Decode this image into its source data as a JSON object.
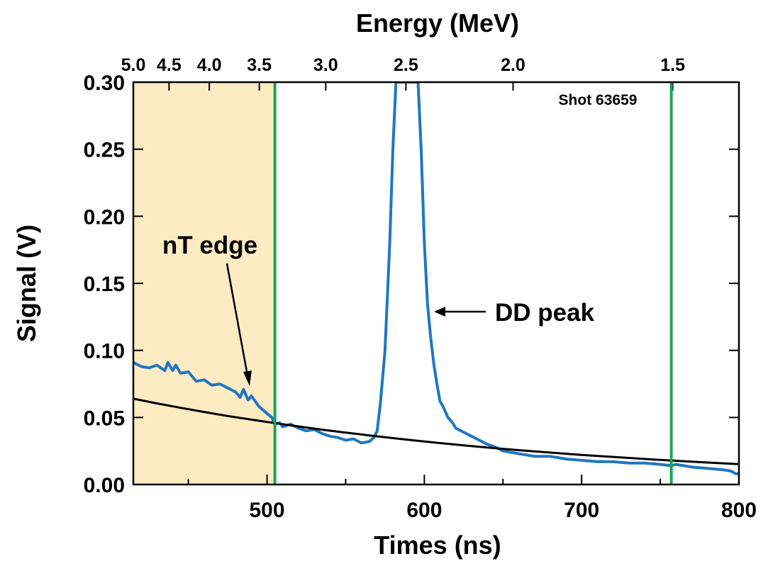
{
  "chart_data": {
    "type": "line",
    "xlabel": "Times (ns)",
    "ylabel": "Signal (V)",
    "x2label": "Energy (MeV)",
    "xlim": [
      415,
      800
    ],
    "ylim": [
      0,
      0.3
    ],
    "x_ticks": [
      "500",
      "600",
      "700",
      "800"
    ],
    "y_ticks": [
      "0.00",
      "0.05",
      "0.10",
      "0.15",
      "0.20",
      "0.25",
      "0.30"
    ],
    "energy_ticks": [
      {
        "label": "5.0",
        "x": 415
      },
      {
        "label": "4.5",
        "x": 437.7
      },
      {
        "label": "4.0",
        "x": 463.3
      },
      {
        "label": "3.5",
        "x": 495.1
      },
      {
        "label": "3.0",
        "x": 537.3
      },
      {
        "label": "2.5",
        "x": 588.3
      },
      {
        "label": "2.0",
        "x": 656.4
      },
      {
        "label": "1.5",
        "x": 757.9
      }
    ],
    "shaded_region": {
      "x_start": 415,
      "x_end": 505,
      "color": "#fdebc4"
    },
    "vlines": [
      {
        "x": 505,
        "color": "#1aa654"
      },
      {
        "x": 757,
        "color": "#1aa654"
      }
    ],
    "series": [
      {
        "color": "#1f77c0",
        "x": [
          415,
          420,
          425,
          430,
          435,
          437,
          440,
          442,
          445,
          450,
          455,
          460,
          465,
          470,
          475,
          480,
          483,
          485,
          488,
          490,
          495,
          500,
          503,
          505,
          508,
          510,
          515,
          520,
          525,
          530,
          535,
          540,
          545,
          550,
          555,
          560,
          565,
          568,
          570,
          572,
          575,
          578,
          580,
          582,
          584,
          586,
          588,
          590,
          592,
          594,
          596,
          598,
          600,
          602,
          604,
          606,
          608,
          610,
          612,
          615,
          618,
          620,
          625,
          630,
          635,
          640,
          645,
          650,
          660,
          670,
          680,
          690,
          700,
          710,
          720,
          730,
          740,
          750,
          757,
          760,
          770,
          780,
          790,
          795,
          798,
          800
        ],
        "y": [
          0.091,
          0.088,
          0.087,
          0.089,
          0.085,
          0.091,
          0.085,
          0.089,
          0.083,
          0.084,
          0.077,
          0.078,
          0.074,
          0.075,
          0.072,
          0.069,
          0.065,
          0.071,
          0.063,
          0.066,
          0.058,
          0.053,
          0.05,
          0.045,
          0.046,
          0.043,
          0.045,
          0.042,
          0.04,
          0.041,
          0.038,
          0.036,
          0.035,
          0.033,
          0.034,
          0.031,
          0.032,
          0.035,
          0.04,
          0.06,
          0.1,
          0.18,
          0.25,
          0.3,
          0.3,
          0.3,
          0.3,
          0.3,
          0.3,
          0.3,
          0.3,
          0.25,
          0.18,
          0.135,
          0.11,
          0.09,
          0.075,
          0.062,
          0.058,
          0.05,
          0.046,
          0.042,
          0.039,
          0.036,
          0.033,
          0.03,
          0.028,
          0.025,
          0.023,
          0.021,
          0.021,
          0.019,
          0.018,
          0.017,
          0.017,
          0.016,
          0.016,
          0.015,
          0.014,
          0.015,
          0.013,
          0.012,
          0.011,
          0.01,
          0.008,
          0.008
        ]
      },
      {
        "color": "#000000",
        "x": [
          415,
          430,
          445,
          460,
          475,
          490,
          505,
          520,
          535,
          550,
          565,
          580,
          595,
          610,
          625,
          640,
          655,
          670,
          685,
          700,
          715,
          730,
          745,
          760,
          775,
          790,
          800
        ],
        "y": [
          0.064,
          0.0605,
          0.0572,
          0.0541,
          0.0511,
          0.0484,
          0.0458,
          0.0433,
          0.0409,
          0.0387,
          0.0366,
          0.0346,
          0.0327,
          0.0309,
          0.0292,
          0.0276,
          0.0261,
          0.0247,
          0.0234,
          0.0221,
          0.0209,
          0.0198,
          0.0187,
          0.0177,
          0.0167,
          0.0158,
          0.0152
        ]
      }
    ],
    "annotations": [
      {
        "text": "nT edge"
      },
      {
        "text": "DD peak"
      },
      {
        "text": "Shot 63659"
      }
    ]
  }
}
